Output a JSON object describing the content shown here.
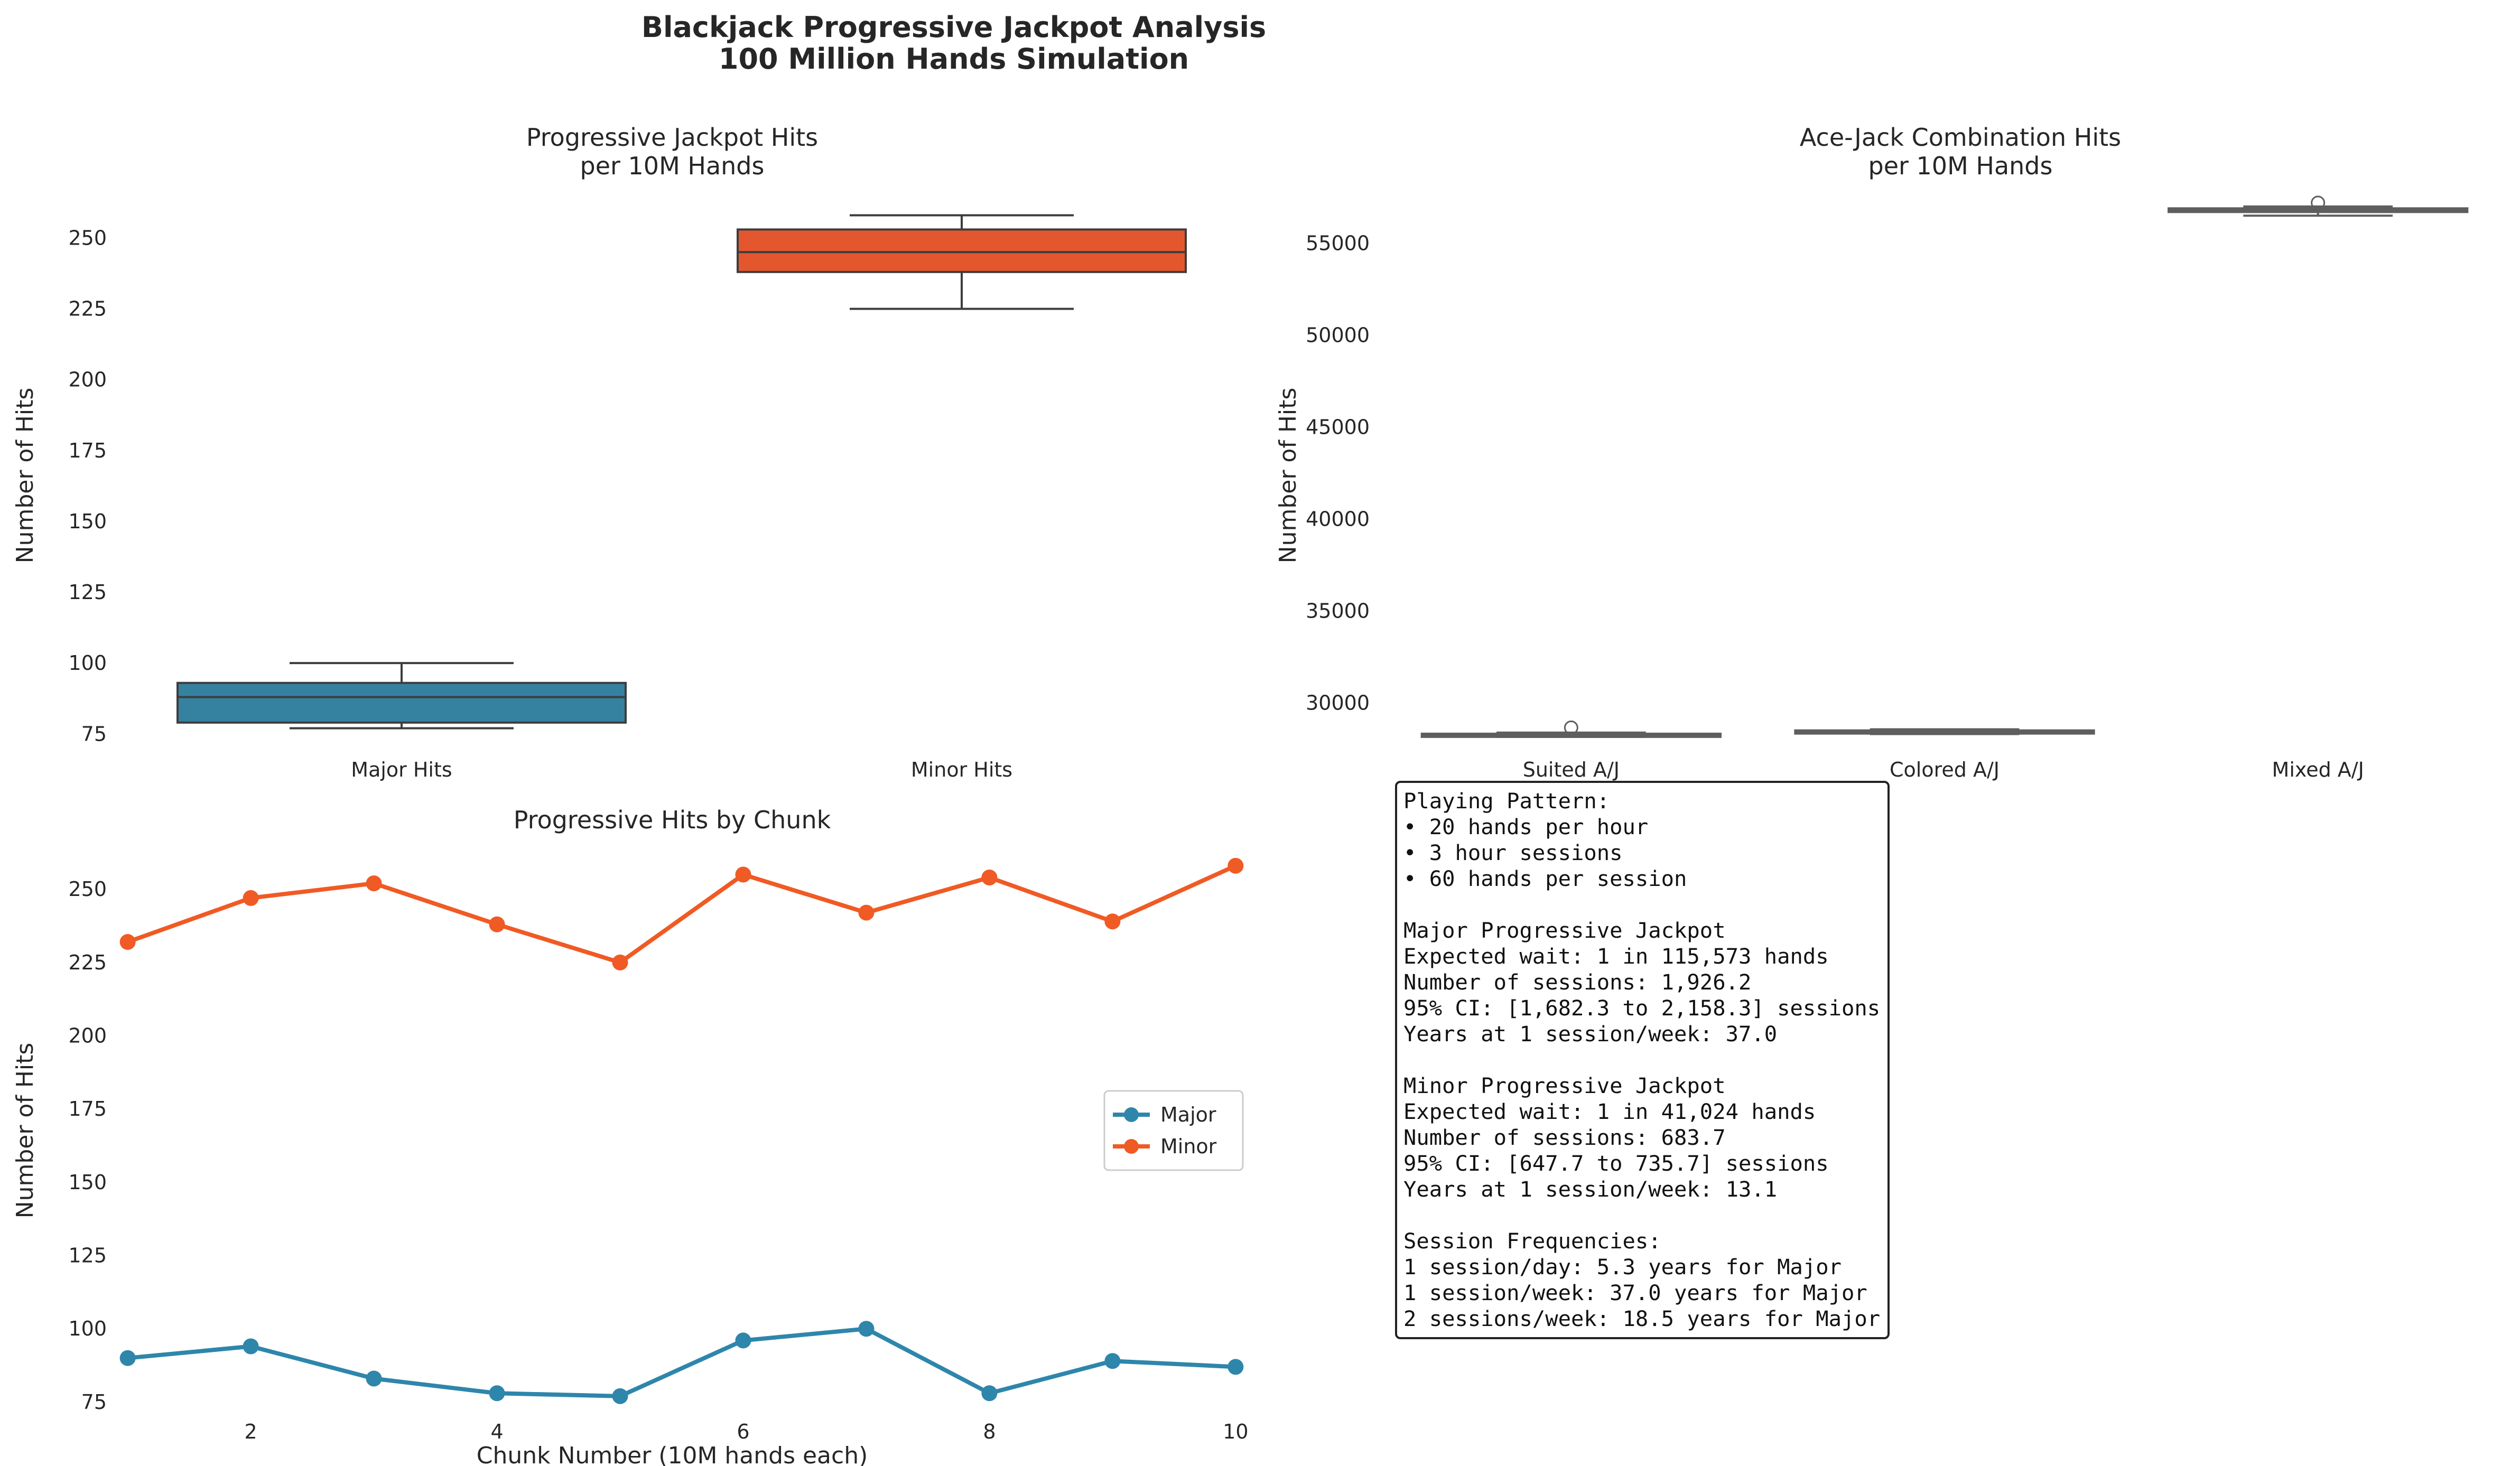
{
  "figure": {
    "title_line1": "Blackjack Progressive Jackpot Analysis",
    "title_line2": "100 Million Hands Simulation"
  },
  "colors": {
    "major": "#2e86ab",
    "minor": "#f05a24",
    "box_major": "#3581a0",
    "box_minor": "#e4572e",
    "box_edge": "#3d3d3d",
    "box_neutral": "#5e5e5e"
  },
  "chart_data": [
    {
      "type": "box",
      "title_line1": "Progressive Jackpot Hits",
      "title_line2": "per 10M Hands",
      "xlabel": "",
      "ylabel": "Number of Hits",
      "ylim": [
        73,
        265
      ],
      "yticks": [
        "75",
        "100",
        "125",
        "150",
        "175",
        "200",
        "225",
        "250"
      ],
      "ytick_values": [
        75,
        100,
        125,
        150,
        175,
        200,
        225,
        250
      ],
      "categories": [
        "Major Hits",
        "Minor Hits"
      ],
      "boxes": [
        {
          "name": "Major Hits",
          "min": 77,
          "q1": 79,
          "median": 88,
          "q3": 93,
          "max": 100,
          "outliers": []
        },
        {
          "name": "Minor Hits",
          "min": 225,
          "q1": 238,
          "median": 245,
          "q3": 253,
          "max": 258,
          "outliers": []
        }
      ]
    },
    {
      "type": "box",
      "title_line1": "Ace-Jack Combination Hits",
      "title_line2": "per 10M Hands",
      "xlabel": "",
      "ylabel": "Number of Hits",
      "ylim": [
        28000,
        57600
      ],
      "yticks": [
        "30000",
        "35000",
        "40000",
        "45000",
        "50000",
        "55000"
      ],
      "ytick_values": [
        30000,
        35000,
        40000,
        45000,
        50000,
        55000
      ],
      "categories": [
        "Suited A/J",
        "Colored A/J",
        "Mixed A/J"
      ],
      "boxes": [
        {
          "name": "Suited A/J",
          "min": 28150,
          "q1": 28200,
          "median": 28260,
          "q3": 28320,
          "max": 28380,
          "outliers": [
            28650
          ]
        },
        {
          "name": "Colored A/J",
          "min": 28300,
          "q1": 28360,
          "median": 28420,
          "q3": 28500,
          "max": 28560,
          "outliers": []
        },
        {
          "name": "Mixed A/J",
          "min": 56500,
          "q1": 56700,
          "median": 56800,
          "q3": 56900,
          "max": 57000,
          "outliers": [
            57200
          ]
        }
      ]
    },
    {
      "type": "line",
      "title": "Progressive Hits by Chunk",
      "xlabel": "Chunk Number (10M hands each)",
      "ylabel": "Number of Hits",
      "xlim": [
        0.95,
        10.05
      ],
      "ylim": [
        73,
        265
      ],
      "xticks": [
        "2",
        "4",
        "6",
        "8",
        "10"
      ],
      "xtick_values": [
        2,
        4,
        6,
        8,
        10
      ],
      "yticks": [
        "75",
        "100",
        "125",
        "150",
        "175",
        "200",
        "225",
        "250"
      ],
      "ytick_values": [
        75,
        100,
        125,
        150,
        175,
        200,
        225,
        250
      ],
      "x": [
        1,
        2,
        3,
        4,
        5,
        6,
        7,
        8,
        9,
        10
      ],
      "series": [
        {
          "name": "Major",
          "values": [
            90,
            94,
            83,
            78,
            77,
            96,
            100,
            78,
            89,
            87
          ]
        },
        {
          "name": "Minor",
          "values": [
            232,
            247,
            252,
            238,
            225,
            255,
            242,
            254,
            239,
            258
          ]
        }
      ],
      "legend": "center-right"
    }
  ],
  "stats_box": {
    "lines": [
      "Playing Pattern:",
      "• 20 hands per hour",
      "• 3 hour sessions",
      "• 60 hands per session",
      "",
      "Major Progressive Jackpot",
      "Expected wait: 1 in 115,573 hands",
      "Number of sessions: 1,926.2",
      "95% CI: [1,682.3 to 2,158.3] sessions",
      "Years at 1 session/week: 37.0",
      "",
      "Minor Progressive Jackpot",
      "Expected wait: 1 in 41,024 hands",
      "Number of sessions: 683.7",
      "95% CI: [647.7 to 735.7] sessions",
      "Years at 1 session/week: 13.1",
      "",
      "Session Frequencies:",
      "1 session/day: 5.3 years for Major",
      "1 session/week: 37.0 years for Major",
      "2 sessions/week: 18.5 years for Major"
    ]
  }
}
